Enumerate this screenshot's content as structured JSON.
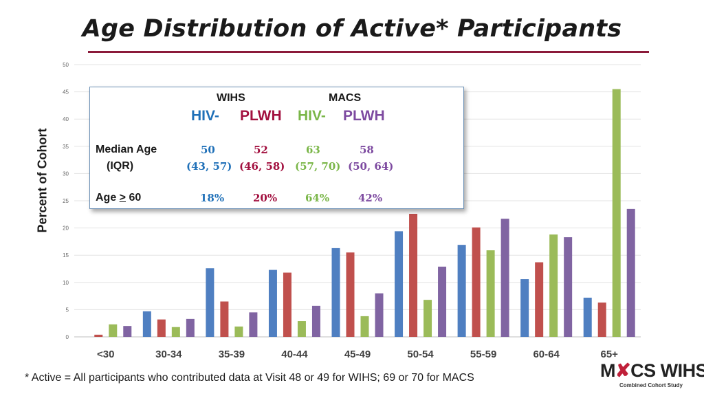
{
  "title": "Age Distribution of Active* Participants",
  "footnote": "* Active = All participants who contributed data at Visit 48 or 49 for WIHS; 69 or 70 for MACS",
  "logo": {
    "text_left": "M",
    "text_right": "CS WIHS",
    "ribbon": "ribbon-icon",
    "subtitle": "Combined Cohort Study"
  },
  "colors": {
    "blue": "#4f7fc1",
    "red": "#c0504d",
    "green": "#9bbb59",
    "purple": "#8064a2",
    "rule": "#8b1a3a"
  },
  "inset": {
    "study_headers": [
      "WIHS",
      "MACS"
    ],
    "groups": [
      "HIV-",
      "PLWH",
      "HIV-",
      "PLWH"
    ],
    "median_label": "Median Age",
    "iqr_label": "(IQR)",
    "age60_label_prefix": "Age ",
    "age60_label_gte": ">",
    "age60_label_suffix": " 60",
    "medians": [
      "50",
      "52",
      "63",
      "58"
    ],
    "iqrs": [
      "(43, 57)",
      "(46, 58)",
      "(57, 70)",
      "(50, 64)"
    ],
    "age60": [
      "18%",
      "20%",
      "64%",
      "42%"
    ]
  },
  "chart_data": {
    "type": "bar",
    "ylabel": "Percent of Cohort",
    "xlabel": "",
    "ylim": [
      0,
      50
    ],
    "yticks": [
      0,
      5,
      10,
      15,
      20,
      25,
      30,
      35,
      40,
      45,
      50
    ],
    "categories": [
      "<30",
      "30-34",
      "35-39",
      "40-44",
      "45-49",
      "50-54",
      "55-59",
      "60-64",
      "65+"
    ],
    "series": [
      {
        "name": "WIHS HIV-",
        "color": "#4f7fc1",
        "values": [
          0,
          4.7,
          12.6,
          12.3,
          16.3,
          19.4,
          16.9,
          10.6,
          7.2
        ]
      },
      {
        "name": "WIHS PLWH",
        "color": "#c0504d",
        "values": [
          0.4,
          3.2,
          6.5,
          11.8,
          15.5,
          22.6,
          20.1,
          13.7,
          6.3
        ]
      },
      {
        "name": "MACS HIV-",
        "color": "#9bbb59",
        "values": [
          2.3,
          1.8,
          1.9,
          2.9,
          3.8,
          6.8,
          15.9,
          18.8,
          45.5
        ]
      },
      {
        "name": "MACS PLWH",
        "color": "#8064a2",
        "values": [
          2.0,
          3.3,
          4.5,
          5.7,
          8.0,
          12.9,
          21.7,
          18.3,
          23.5
        ]
      }
    ]
  }
}
